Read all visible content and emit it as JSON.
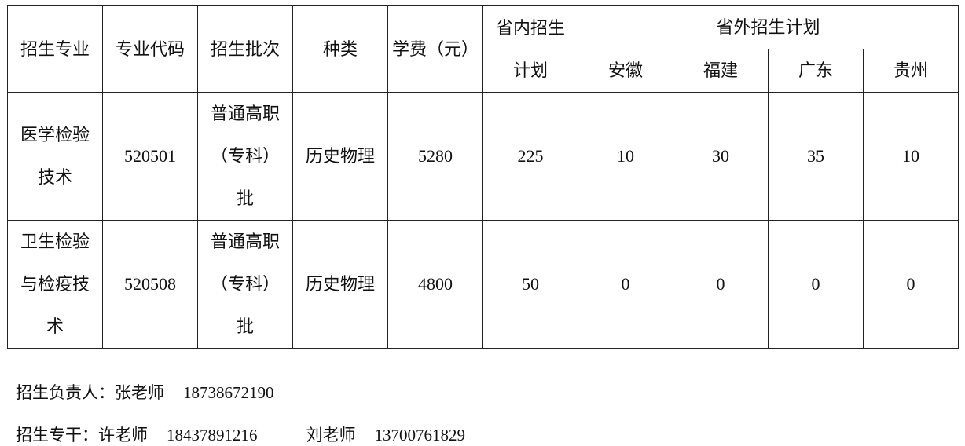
{
  "table": {
    "headers": {
      "major": "招生专业",
      "code": "专业代码",
      "batch": "招生批次",
      "category": "种类",
      "tuition": "学费（元）",
      "in_province_line1": "省内招生",
      "in_province_line2": "计划",
      "out_province": "省外招生计划",
      "provinces": [
        "安徽",
        "福建",
        "广东",
        "贵州"
      ]
    },
    "rows": [
      {
        "major": [
          "医学检验",
          "技术"
        ],
        "code": "520501",
        "batch": [
          "普通高职",
          "（专科）",
          "批"
        ],
        "category": "历史物理",
        "tuition": "5280",
        "in_province": "225",
        "out": [
          "10",
          "30",
          "35",
          "10"
        ]
      },
      {
        "major": [
          "卫生检验",
          "与检疫技",
          "术"
        ],
        "code": "520508",
        "batch": [
          "普通高职",
          "（专科）",
          "批"
        ],
        "category": "历史物理",
        "tuition": "4800",
        "in_province": "50",
        "out": [
          "0",
          "0",
          "0",
          "0"
        ]
      }
    ]
  },
  "contacts": {
    "lead_label": "招生负责人：",
    "lead_name": "张老师",
    "lead_phone": "18738672190",
    "staff_label": "招生专干：",
    "staff1_name": "许老师",
    "staff1_phone": "18437891216",
    "staff2_name": "刘老师",
    "staff2_phone": "13700761829"
  }
}
